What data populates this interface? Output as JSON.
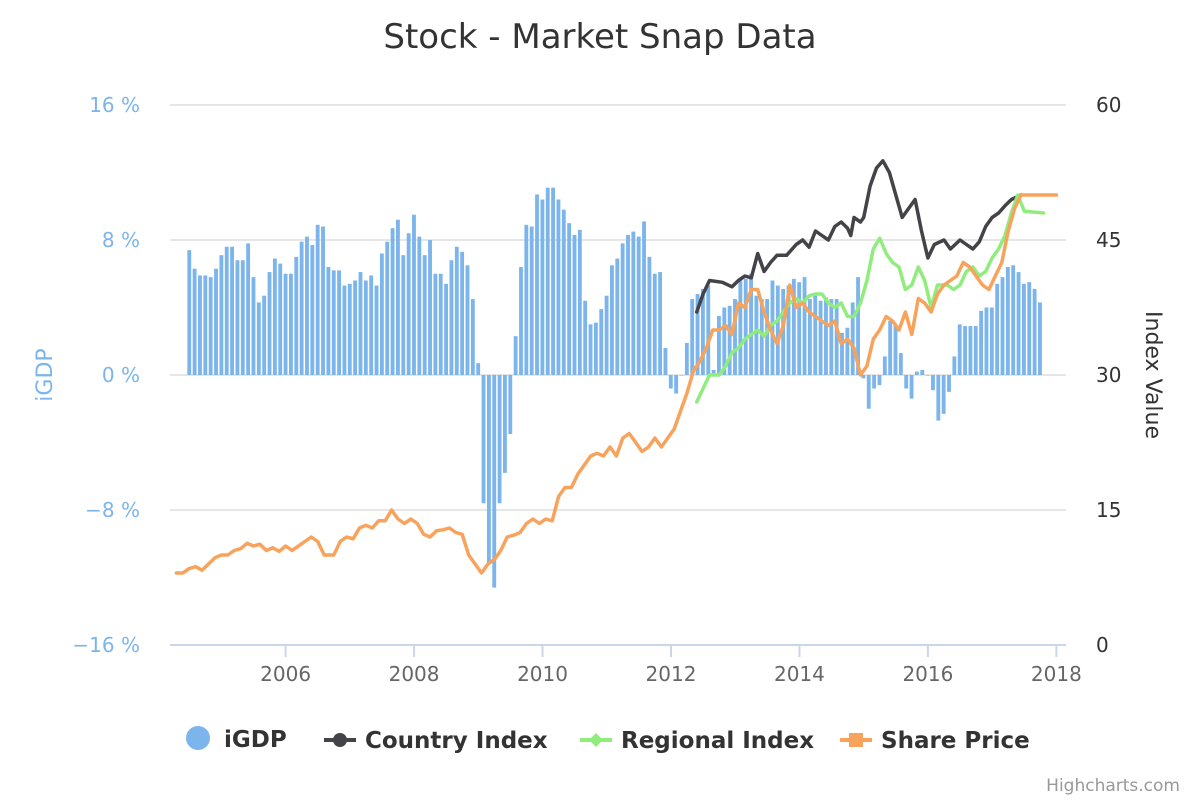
{
  "chart_data": {
    "type": "bar",
    "title": "Stock - Market Snap Data",
    "y_left": {
      "label": "iGDP",
      "ticks": [
        "16 %",
        "8 %",
        "0 %",
        "−8 %",
        "−16 %"
      ],
      "tick_values": [
        16,
        8,
        0,
        -8,
        -16
      ],
      "range": [
        -16,
        16
      ],
      "color": "#7cb5ec"
    },
    "y_right": {
      "label": "Index Value",
      "ticks": [
        "60",
        "45",
        "30",
        "15",
        "0"
      ],
      "tick_values": [
        60,
        45,
        30,
        15,
        0
      ],
      "range": [
        0,
        60
      ],
      "color": "#333333"
    },
    "x_axis": {
      "ticks": [
        "2006",
        "2008",
        "2010",
        "2012",
        "2014",
        "2016",
        "2018"
      ],
      "tick_values": [
        2006,
        2008,
        2010,
        2012,
        2014,
        2016,
        2018
      ],
      "range": [
        2004.2,
        2018.15
      ]
    },
    "grid": true,
    "legend_position": "bottom-center",
    "series": [
      {
        "name": "iGDP",
        "type": "column",
        "axis": "left",
        "color": "#7cb5ec",
        "x_start": 2004.5,
        "x_step": 0.0833,
        "values": [
          7.4,
          6.3,
          5.9,
          5.9,
          5.8,
          6.3,
          7.1,
          7.6,
          7.6,
          6.8,
          6.8,
          7.8,
          5.8,
          4.3,
          4.7,
          6.1,
          6.9,
          6.6,
          6.0,
          6.0,
          7.0,
          7.9,
          8.2,
          7.7,
          8.9,
          8.8,
          6.4,
          6.2,
          6.2,
          5.3,
          5.4,
          5.6,
          6.1,
          5.6,
          5.9,
          5.3,
          7.2,
          7.9,
          8.7,
          9.2,
          7.1,
          8.4,
          9.5,
          8.2,
          7.1,
          8.0,
          6.0,
          6.0,
          5.4,
          6.8,
          7.6,
          7.3,
          6.5,
          4.5,
          0.7,
          -7.6,
          -11.2,
          -12.6,
          -7.6,
          -5.8,
          -3.5,
          2.3,
          6.4,
          8.9,
          8.8,
          10.7,
          10.4,
          11.1,
          11.1,
          10.4,
          9.8,
          9.0,
          8.3,
          8.6,
          4.4,
          3.0,
          3.1,
          3.9,
          4.7,
          6.5,
          6.9,
          7.8,
          8.3,
          8.5,
          8.2,
          9.1,
          7.0,
          6.0,
          6.1,
          1.6,
          -0.8,
          -1.1,
          0.0,
          1.9,
          4.5,
          4.8,
          5.1,
          5.3,
          0.3,
          3.5,
          4.0,
          4.1,
          4.5,
          5.6,
          5.7,
          6.0,
          4.7,
          4.5,
          4.5,
          5.6,
          5.3,
          5.1,
          5.3,
          5.7,
          5.5,
          5.8,
          4.5,
          4.7,
          4.4,
          4.6,
          4.5,
          4.5,
          2.5,
          2.8,
          4.3,
          5.8,
          -0.2,
          -2.0,
          -0.8,
          -0.6,
          1.1,
          3.2,
          3.0,
          1.3,
          -0.8,
          -1.4,
          0.2,
          0.3,
          0.0,
          -0.9,
          -2.7,
          -2.3,
          -1.0,
          1.1,
          3.0,
          2.9,
          2.9,
          2.9,
          3.8,
          4.0,
          4.0,
          5.4,
          5.8,
          6.4,
          6.5,
          6.1,
          5.4,
          5.5,
          5.1,
          4.3
        ]
      },
      {
        "name": "Country Index",
        "type": "line",
        "axis": "right",
        "color": "#434348",
        "points": [
          [
            2012.4,
            37.0
          ],
          [
            2012.5,
            39.0
          ],
          [
            2012.6,
            40.5
          ],
          [
            2012.8,
            40.3
          ],
          [
            2012.95,
            39.8
          ],
          [
            2013.05,
            40.5
          ],
          [
            2013.15,
            41.0
          ],
          [
            2013.25,
            40.8
          ],
          [
            2013.35,
            43.5
          ],
          [
            2013.45,
            41.5
          ],
          [
            2013.55,
            42.5
          ],
          [
            2013.65,
            43.3
          ],
          [
            2013.8,
            43.3
          ],
          [
            2013.95,
            44.5
          ],
          [
            2014.05,
            45.0
          ],
          [
            2014.15,
            44.2
          ],
          [
            2014.25,
            46.0
          ],
          [
            2014.35,
            45.5
          ],
          [
            2014.45,
            45.0
          ],
          [
            2014.55,
            46.5
          ],
          [
            2014.65,
            47.0
          ],
          [
            2014.75,
            46.3
          ],
          [
            2014.8,
            45.5
          ],
          [
            2014.85,
            47.5
          ],
          [
            2014.95,
            47.0
          ],
          [
            2015.0,
            47.5
          ],
          [
            2015.1,
            51.0
          ],
          [
            2015.2,
            53.0
          ],
          [
            2015.3,
            53.8
          ],
          [
            2015.4,
            52.5
          ],
          [
            2015.5,
            50.0
          ],
          [
            2015.6,
            47.5
          ],
          [
            2015.7,
            48.5
          ],
          [
            2015.8,
            49.5
          ],
          [
            2015.9,
            46.0
          ],
          [
            2016.0,
            43.0
          ],
          [
            2016.1,
            44.5
          ],
          [
            2016.25,
            45.0
          ],
          [
            2016.35,
            44.0
          ],
          [
            2016.5,
            45.0
          ],
          [
            2016.6,
            44.5
          ],
          [
            2016.7,
            44.0
          ],
          [
            2016.8,
            44.8
          ],
          [
            2016.9,
            46.5
          ],
          [
            2017.0,
            47.5
          ],
          [
            2017.1,
            48.0
          ],
          [
            2017.2,
            48.8
          ],
          [
            2017.3,
            49.5
          ],
          [
            2017.45,
            50.0
          ]
        ]
      },
      {
        "name": "Regional Index",
        "type": "line",
        "axis": "right",
        "color": "#90ed7d",
        "points": [
          [
            2012.4,
            27.0
          ],
          [
            2012.5,
            28.5
          ],
          [
            2012.6,
            30.0
          ],
          [
            2012.75,
            30.0
          ],
          [
            2012.85,
            31.0
          ],
          [
            2012.95,
            32.5
          ],
          [
            2013.05,
            33.0
          ],
          [
            2013.15,
            34.0
          ],
          [
            2013.25,
            34.5
          ],
          [
            2013.35,
            35.0
          ],
          [
            2013.45,
            34.3
          ],
          [
            2013.55,
            35.5
          ],
          [
            2013.65,
            36.0
          ],
          [
            2013.75,
            37.0
          ],
          [
            2013.85,
            38.0
          ],
          [
            2013.95,
            38.5
          ],
          [
            2014.05,
            38.0
          ],
          [
            2014.15,
            38.8
          ],
          [
            2014.25,
            39.0
          ],
          [
            2014.35,
            39.0
          ],
          [
            2014.45,
            38.0
          ],
          [
            2014.55,
            37.5
          ],
          [
            2014.65,
            38.0
          ],
          [
            2014.75,
            36.5
          ],
          [
            2014.85,
            36.5
          ],
          [
            2014.95,
            38.0
          ],
          [
            2015.05,
            40.5
          ],
          [
            2015.15,
            44.0
          ],
          [
            2015.25,
            45.2
          ],
          [
            2015.35,
            43.5
          ],
          [
            2015.45,
            42.5
          ],
          [
            2015.55,
            42.0
          ],
          [
            2015.65,
            39.5
          ],
          [
            2015.75,
            40.0
          ],
          [
            2015.85,
            42.0
          ],
          [
            2015.95,
            40.5
          ],
          [
            2016.05,
            37.5
          ],
          [
            2016.15,
            40.0
          ],
          [
            2016.3,
            40.0
          ],
          [
            2016.4,
            39.5
          ],
          [
            2016.5,
            40.0
          ],
          [
            2016.6,
            41.5
          ],
          [
            2016.7,
            42.0
          ],
          [
            2016.8,
            41.0
          ],
          [
            2016.9,
            41.5
          ],
          [
            2017.0,
            43.0
          ],
          [
            2017.1,
            44.0
          ],
          [
            2017.2,
            45.5
          ],
          [
            2017.3,
            48.0
          ],
          [
            2017.4,
            50.0
          ],
          [
            2017.5,
            48.2
          ],
          [
            2017.8,
            48.0
          ]
        ]
      },
      {
        "name": "Share Price",
        "type": "line",
        "axis": "right",
        "color": "#f7a35c",
        "points": [
          [
            2004.3,
            8.0
          ],
          [
            2004.4,
            8.0
          ],
          [
            2004.5,
            8.5
          ],
          [
            2004.6,
            8.7
          ],
          [
            2004.7,
            8.3
          ],
          [
            2004.8,
            9.0
          ],
          [
            2004.9,
            9.7
          ],
          [
            2005.0,
            10.0
          ],
          [
            2005.1,
            10.0
          ],
          [
            2005.2,
            10.5
          ],
          [
            2005.3,
            10.7
          ],
          [
            2005.4,
            11.3
          ],
          [
            2005.5,
            11.0
          ],
          [
            2005.6,
            11.2
          ],
          [
            2005.7,
            10.5
          ],
          [
            2005.8,
            10.8
          ],
          [
            2005.9,
            10.4
          ],
          [
            2006.0,
            11.0
          ],
          [
            2006.1,
            10.5
          ],
          [
            2006.2,
            11.0
          ],
          [
            2006.3,
            11.5
          ],
          [
            2006.4,
            12.0
          ],
          [
            2006.5,
            11.5
          ],
          [
            2006.6,
            10.0
          ],
          [
            2006.75,
            10.0
          ],
          [
            2006.85,
            11.5
          ],
          [
            2006.95,
            12.0
          ],
          [
            2007.05,
            11.8
          ],
          [
            2007.15,
            13.0
          ],
          [
            2007.25,
            13.3
          ],
          [
            2007.35,
            13.0
          ],
          [
            2007.45,
            13.8
          ],
          [
            2007.55,
            13.8
          ],
          [
            2007.65,
            15.0
          ],
          [
            2007.75,
            14.0
          ],
          [
            2007.85,
            13.5
          ],
          [
            2007.95,
            14.0
          ],
          [
            2008.05,
            13.5
          ],
          [
            2008.15,
            12.3
          ],
          [
            2008.25,
            12.0
          ],
          [
            2008.35,
            12.7
          ],
          [
            2008.45,
            12.8
          ],
          [
            2008.55,
            13.0
          ],
          [
            2008.65,
            12.5
          ],
          [
            2008.75,
            12.3
          ],
          [
            2008.85,
            10.0
          ],
          [
            2008.95,
            9.0
          ],
          [
            2009.05,
            8.0
          ],
          [
            2009.15,
            9.0
          ],
          [
            2009.25,
            9.5
          ],
          [
            2009.35,
            10.5
          ],
          [
            2009.45,
            12.0
          ],
          [
            2009.55,
            12.2
          ],
          [
            2009.65,
            12.5
          ],
          [
            2009.75,
            13.5
          ],
          [
            2009.85,
            14.0
          ],
          [
            2009.95,
            13.5
          ],
          [
            2010.05,
            14.0
          ],
          [
            2010.15,
            13.8
          ],
          [
            2010.25,
            16.5
          ],
          [
            2010.35,
            17.5
          ],
          [
            2010.45,
            17.5
          ],
          [
            2010.55,
            19.0
          ],
          [
            2010.65,
            20.0
          ],
          [
            2010.75,
            21.0
          ],
          [
            2010.85,
            21.3
          ],
          [
            2010.95,
            21.0
          ],
          [
            2011.05,
            22.0
          ],
          [
            2011.15,
            21.0
          ],
          [
            2011.25,
            23.0
          ],
          [
            2011.35,
            23.5
          ],
          [
            2011.45,
            22.5
          ],
          [
            2011.55,
            21.5
          ],
          [
            2011.65,
            22.0
          ],
          [
            2011.75,
            23.0
          ],
          [
            2011.85,
            22.0
          ],
          [
            2011.95,
            23.0
          ],
          [
            2012.05,
            24.0
          ],
          [
            2012.15,
            26.0
          ],
          [
            2012.25,
            28.0
          ],
          [
            2012.35,
            30.5
          ],
          [
            2012.45,
            31.5
          ],
          [
            2012.55,
            33.0
          ],
          [
            2012.65,
            35.0
          ],
          [
            2012.75,
            35.0
          ],
          [
            2012.85,
            35.5
          ],
          [
            2012.95,
            34.5
          ],
          [
            2013.05,
            38.0
          ],
          [
            2013.15,
            37.5
          ],
          [
            2013.25,
            39.5
          ],
          [
            2013.35,
            39.5
          ],
          [
            2013.45,
            37.0
          ],
          [
            2013.55,
            35.0
          ],
          [
            2013.65,
            33.5
          ],
          [
            2013.75,
            35.5
          ],
          [
            2013.85,
            40.0
          ],
          [
            2013.95,
            37.5
          ],
          [
            2014.05,
            38.0
          ],
          [
            2014.15,
            37.0
          ],
          [
            2014.25,
            36.5
          ],
          [
            2014.35,
            36.0
          ],
          [
            2014.45,
            35.5
          ],
          [
            2014.55,
            36.0
          ],
          [
            2014.65,
            33.5
          ],
          [
            2014.75,
            34.0
          ],
          [
            2014.85,
            33.0
          ],
          [
            2014.95,
            30.0
          ],
          [
            2015.05,
            31.0
          ],
          [
            2015.15,
            34.0
          ],
          [
            2015.25,
            35.0
          ],
          [
            2015.35,
            36.5
          ],
          [
            2015.45,
            36.0
          ],
          [
            2015.55,
            35.0
          ],
          [
            2015.65,
            37.0
          ],
          [
            2015.75,
            34.5
          ],
          [
            2015.85,
            38.5
          ],
          [
            2015.95,
            38.0
          ],
          [
            2016.05,
            37.0
          ],
          [
            2016.15,
            39.0
          ],
          [
            2016.25,
            40.0
          ],
          [
            2016.35,
            40.5
          ],
          [
            2016.45,
            41.0
          ],
          [
            2016.55,
            42.5
          ],
          [
            2016.65,
            42.0
          ],
          [
            2016.75,
            41.0
          ],
          [
            2016.85,
            40.0
          ],
          [
            2016.95,
            39.5
          ],
          [
            2017.05,
            41.0
          ],
          [
            2017.15,
            42.5
          ],
          [
            2017.25,
            46.0
          ],
          [
            2017.35,
            48.5
          ],
          [
            2017.45,
            50.0
          ],
          [
            2017.55,
            50.0
          ],
          [
            2018.0,
            50.0
          ]
        ]
      }
    ],
    "legend": [
      {
        "label": "iGDP",
        "color": "#7cb5ec",
        "marker": "circle"
      },
      {
        "label": "Country Index",
        "color": "#434348",
        "marker": "circle"
      },
      {
        "label": "Regional Index",
        "color": "#90ed7d",
        "marker": "diamond"
      },
      {
        "label": "Share Price",
        "color": "#f7a35c",
        "marker": "square"
      }
    ],
    "credits": "Highcharts.com"
  }
}
